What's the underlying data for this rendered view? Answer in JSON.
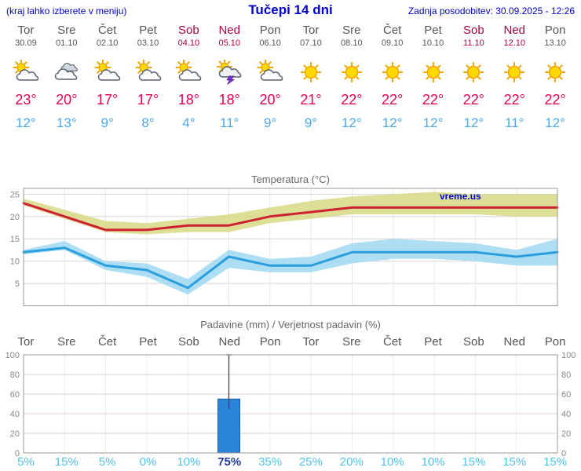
{
  "header": {
    "note": "(kraj lahko izberete v meniju)",
    "title": "Tučepi 14 dni",
    "updated": "Zadnja posodobitev: 30.09.2025 - 12:26"
  },
  "watermark": "vreme.us",
  "days": [
    {
      "name": "Tor",
      "date": "30.09",
      "icon": "sun-cloud",
      "weekend": false,
      "tmax": "23°",
      "tmin": "12°"
    },
    {
      "name": "Sre",
      "date": "01.10",
      "icon": "clouds",
      "weekend": false,
      "tmax": "20°",
      "tmin": "13°"
    },
    {
      "name": "Čet",
      "date": "02.10",
      "icon": "sun-cloud",
      "weekend": false,
      "tmax": "17°",
      "tmin": "9°"
    },
    {
      "name": "Pet",
      "date": "03.10",
      "icon": "sun-cloud",
      "weekend": false,
      "tmax": "17°",
      "tmin": "8°"
    },
    {
      "name": "Sob",
      "date": "04.10",
      "icon": "sun-cloud",
      "weekend": true,
      "tmax": "18°",
      "tmin": "4°"
    },
    {
      "name": "Ned",
      "date": "05.10",
      "icon": "storm",
      "weekend": true,
      "tmax": "18°",
      "tmin": "11°"
    },
    {
      "name": "Pon",
      "date": "06.10",
      "icon": "sun-cloud",
      "weekend": false,
      "tmax": "20°",
      "tmin": "9°"
    },
    {
      "name": "Tor",
      "date": "07.10",
      "icon": "sun",
      "weekend": false,
      "tmax": "21°",
      "tmin": "9°"
    },
    {
      "name": "Sre",
      "date": "08.10",
      "icon": "sun",
      "weekend": false,
      "tmax": "22°",
      "tmin": "12°"
    },
    {
      "name": "Čet",
      "date": "09.10",
      "icon": "sun",
      "weekend": false,
      "tmax": "22°",
      "tmin": "12°"
    },
    {
      "name": "Pet",
      "date": "10.10",
      "icon": "sun",
      "weekend": false,
      "tmax": "22°",
      "tmin": "12°"
    },
    {
      "name": "Sob",
      "date": "11.10",
      "icon": "sun",
      "weekend": true,
      "tmax": "22°",
      "tmin": "12°"
    },
    {
      "name": "Ned",
      "date": "12.10",
      "icon": "sun",
      "weekend": true,
      "tmax": "22°",
      "tmin": "11°"
    },
    {
      "name": "Pon",
      "date": "13.10",
      "icon": "sun",
      "weekend": false,
      "tmax": "22°",
      "tmin": "12°"
    }
  ],
  "chart_data": [
    {
      "type": "line",
      "title": "Temperatura (°C)",
      "categories": [
        "Tor 30.09",
        "Sre 01.10",
        "Čet 02.10",
        "Pet 03.10",
        "Sob 04.10",
        "Ned 05.10",
        "Pon 06.10",
        "Tor 07.10",
        "Sre 08.10",
        "Čet 09.10",
        "Pet 10.10",
        "Sob 11.10",
        "Ned 12.10",
        "Pon 13.10"
      ],
      "ylim": [
        0,
        26.3
      ],
      "yticks": [
        5,
        10,
        15,
        20,
        25
      ],
      "grid": true,
      "series": [
        {
          "name": "max-temp",
          "color": "#cc2233",
          "values": [
            23,
            20,
            17,
            17,
            18,
            18,
            20,
            21,
            22,
            22,
            22,
            22,
            22,
            22
          ]
        },
        {
          "name": "max-temp-band-high",
          "values": [
            24,
            21.5,
            19,
            18.5,
            19.5,
            20.5,
            22,
            23.5,
            24.5,
            25,
            25.5,
            25,
            25,
            25
          ]
        },
        {
          "name": "max-temp-band-low",
          "values": [
            22.5,
            19.5,
            16.5,
            16,
            16.5,
            16.5,
            18.5,
            19.5,
            20.5,
            20.5,
            20.5,
            20.5,
            20,
            20
          ]
        },
        {
          "name": "min-temp",
          "color": "#2b9fdb",
          "values": [
            12,
            13,
            9,
            8,
            4,
            11,
            9,
            9,
            12,
            12,
            12,
            12,
            11,
            12
          ]
        },
        {
          "name": "min-temp-band-high",
          "values": [
            12.5,
            14.5,
            10,
            9.5,
            6,
            12.5,
            10.5,
            11,
            14,
            15,
            14.5,
            14,
            12.5,
            15
          ]
        },
        {
          "name": "min-temp-band-low",
          "values": [
            11.5,
            12.5,
            8,
            6.5,
            2.5,
            8.5,
            7.5,
            7.5,
            9.5,
            10.5,
            10.5,
            10,
            9,
            9
          ]
        }
      ]
    },
    {
      "type": "bar",
      "title": "Padavine (mm) / Verjetnost padavin (%)",
      "categories": [
        "Tor",
        "Sre",
        "Čet",
        "Pet",
        "Sob",
        "Ned",
        "Pon",
        "Tor",
        "Sre",
        "Čet",
        "Pet",
        "Sob",
        "Ned",
        "Pon"
      ],
      "weekend": [
        false,
        false,
        false,
        false,
        true,
        true,
        false,
        false,
        false,
        false,
        false,
        true,
        true,
        false
      ],
      "ylim": [
        0,
        100
      ],
      "yticks": [
        0,
        20,
        40,
        60,
        80,
        100
      ],
      "precip_mm": [
        0,
        0,
        0,
        0,
        0,
        55,
        0,
        0,
        0,
        0,
        0,
        0,
        0,
        0
      ],
      "precip_max_mm": [
        0,
        0,
        0,
        0,
        0,
        100,
        0,
        0,
        0,
        0,
        0,
        0,
        0,
        0
      ],
      "probability_pct": [
        5,
        15,
        5,
        0,
        10,
        75,
        35,
        25,
        20,
        10,
        10,
        15,
        15,
        15
      ]
    }
  ],
  "colors": {
    "accent_blue": "#0000cc",
    "weekend_red": "#aa0044",
    "day_gray": "#555555",
    "tmax_red": "#e40055",
    "tmin_blue": "#4aa8ee",
    "line_max": "#cc2233",
    "band_max": "#d8d985",
    "line_min": "#2b9fdb",
    "band_min": "#9fd8f2",
    "bar_blue": "#2a85d8",
    "pct_cyan": "#4ec3e8",
    "pct_highlight": "#1f3d99"
  }
}
